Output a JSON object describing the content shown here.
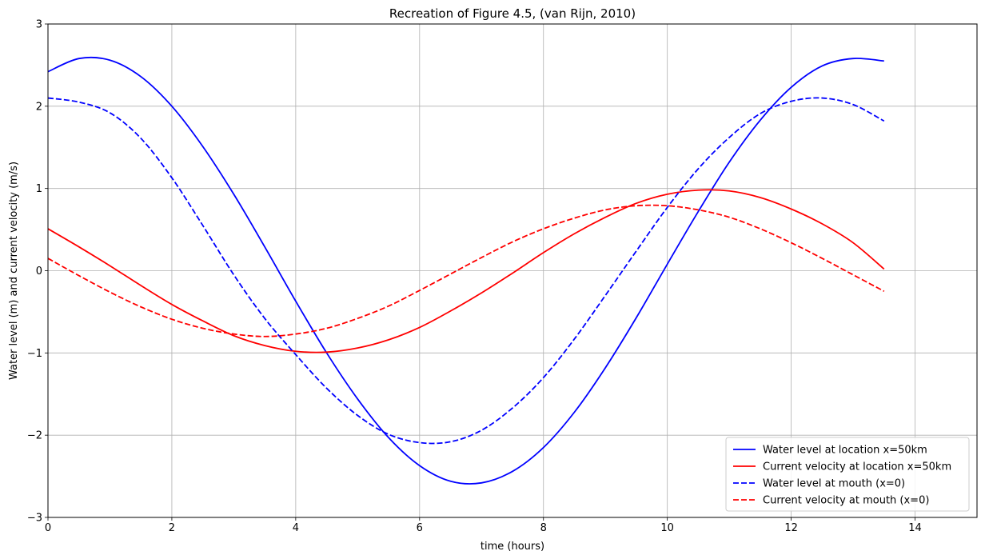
{
  "chart_data": {
    "type": "line",
    "title": "Recreation of Figure 4.5, (van Rijn, 2010)",
    "xlabel": "time (hours)",
    "ylabel": "Water level (m) and current velocity (m/s)",
    "xlim": [
      0,
      15
    ],
    "ylim": [
      -3,
      3
    ],
    "xticks": [
      0,
      2,
      4,
      6,
      8,
      10,
      12,
      14
    ],
    "xtick_labels": [
      "0",
      "2",
      "4",
      "6",
      "8",
      "10",
      "12",
      "14"
    ],
    "yticks": [
      -3,
      -2,
      -1,
      0,
      1,
      2,
      3
    ],
    "ytick_labels": [
      "−3",
      "−2",
      "−1",
      "0",
      "1",
      "2",
      "3"
    ],
    "grid": true,
    "legend_position": "bottom-right",
    "series": [
      {
        "name": "Water level at location x=50km",
        "color": "#0000ff",
        "dash": "solid",
        "x": [
          0,
          0.5,
          1,
          1.5,
          2,
          2.5,
          3,
          3.5,
          4,
          4.5,
          5,
          5.5,
          6,
          6.5,
          7,
          7.5,
          8,
          8.5,
          9,
          9.5,
          10,
          10.5,
          11,
          11.5,
          12,
          12.5,
          13,
          13.5
        ],
        "y": [
          2.42,
          2.58,
          2.56,
          2.36,
          2.0,
          1.51,
          0.93,
          0.29,
          -0.37,
          -1.0,
          -1.56,
          -2.03,
          -2.37,
          -2.56,
          -2.58,
          -2.44,
          -2.15,
          -1.72,
          -1.18,
          -0.57,
          0.08,
          0.72,
          1.32,
          1.83,
          2.23,
          2.49,
          2.58,
          2.55
        ]
      },
      {
        "name": "Current velocity at location x=50km",
        "color": "#ff0000",
        "dash": "solid",
        "x": [
          0,
          0.5,
          1,
          1.5,
          2,
          2.5,
          3,
          3.5,
          4,
          4.5,
          5,
          5.5,
          6,
          6.5,
          7,
          7.5,
          8,
          8.5,
          9,
          9.5,
          10,
          10.5,
          11,
          11.5,
          12,
          12.5,
          13,
          13.5
        ],
        "y": [
          0.51,
          0.29,
          0.06,
          -0.18,
          -0.41,
          -0.61,
          -0.79,
          -0.91,
          -0.98,
          -0.99,
          -0.94,
          -0.84,
          -0.69,
          -0.49,
          -0.27,
          -0.03,
          0.22,
          0.45,
          0.65,
          0.82,
          0.93,
          0.98,
          0.97,
          0.89,
          0.75,
          0.57,
          0.34,
          0.02
        ]
      },
      {
        "name": "Water level at mouth (x=0)",
        "color": "#0000ff",
        "dash": "dashed",
        "x": [
          0,
          0.5,
          1,
          1.5,
          2,
          2.5,
          3,
          3.5,
          4,
          4.5,
          5,
          5.5,
          6,
          6.5,
          7,
          7.5,
          8,
          8.5,
          9,
          9.5,
          10,
          10.5,
          11,
          11.5,
          12,
          12.5,
          13,
          13.5
        ],
        "y": [
          2.1,
          2.05,
          1.92,
          1.61,
          1.13,
          0.55,
          -0.05,
          -0.58,
          -1.02,
          -1.43,
          -1.76,
          -1.99,
          -2.09,
          -2.08,
          -1.94,
          -1.67,
          -1.3,
          -0.83,
          -0.3,
          0.24,
          0.77,
          1.24,
          1.62,
          1.91,
          2.06,
          2.1,
          2.02,
          1.82
        ]
      },
      {
        "name": "Current velocity at mouth (x=0)",
        "color": "#ff0000",
        "dash": "dashed",
        "x": [
          0,
          0.5,
          1,
          1.5,
          2,
          2.5,
          3,
          3.5,
          4,
          4.5,
          5,
          5.5,
          6,
          6.5,
          7,
          7.5,
          8,
          8.5,
          9,
          9.5,
          10,
          10.5,
          11,
          11.5,
          12,
          12.5,
          13,
          13.5
        ],
        "y": [
          0.15,
          -0.06,
          -0.26,
          -0.44,
          -0.59,
          -0.7,
          -0.77,
          -0.8,
          -0.77,
          -0.7,
          -0.58,
          -0.43,
          -0.24,
          -0.04,
          0.16,
          0.35,
          0.51,
          0.64,
          0.74,
          0.79,
          0.79,
          0.74,
          0.65,
          0.51,
          0.34,
          0.15,
          -0.05,
          -0.25
        ]
      }
    ]
  }
}
